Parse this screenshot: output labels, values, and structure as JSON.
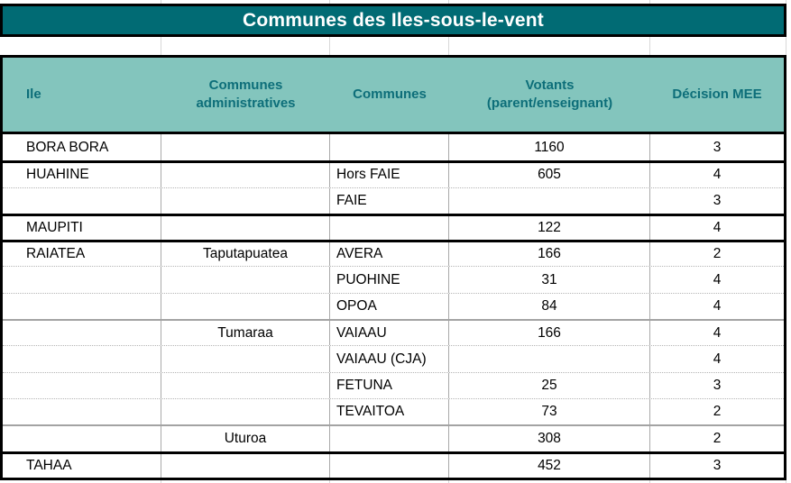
{
  "title": "Communes des Iles-sous-le-vent",
  "columns": [
    {
      "label": "Ile"
    },
    {
      "label": "Communes\nadministratives"
    },
    {
      "label": "Communes"
    },
    {
      "label": "Votants\n(parent/enseignant)"
    },
    {
      "label": "Décision MEE"
    }
  ],
  "rows": [
    {
      "ile": "BORA BORA",
      "admin": "",
      "commune": "",
      "votants": "1160",
      "decision": "3",
      "divider": "none"
    },
    {
      "ile": "HUAHINE",
      "admin": "",
      "commune": "Hors FAIE",
      "votants": "605",
      "decision": "4",
      "divider": "thick"
    },
    {
      "ile": "",
      "admin": "",
      "commune": "FAIE",
      "votants": "",
      "decision": "3",
      "divider": "dotted"
    },
    {
      "ile": "MAUPITI",
      "admin": "",
      "commune": "",
      "votants": "122",
      "decision": "4",
      "divider": "thick"
    },
    {
      "ile": "RAIATEA",
      "admin": "Taputapuatea",
      "commune": "AVERA",
      "votants": "166",
      "decision": "2",
      "divider": "thick"
    },
    {
      "ile": "",
      "admin": "",
      "commune": "PUOHINE",
      "votants": "31",
      "decision": "4",
      "divider": "dotted"
    },
    {
      "ile": "",
      "admin": "",
      "commune": "OPOA",
      "votants": "84",
      "decision": "4",
      "divider": "dotted"
    },
    {
      "ile": "",
      "admin": "Tumaraa",
      "commune": "VAIAAU",
      "votants": "166",
      "decision": "4",
      "divider": "gray"
    },
    {
      "ile": "",
      "admin": "",
      "commune": "VAIAAU (CJA)",
      "votants": "",
      "decision": "4",
      "divider": "dotted"
    },
    {
      "ile": "",
      "admin": "",
      "commune": "FETUNA",
      "votants": "25",
      "decision": "3",
      "divider": "dotted"
    },
    {
      "ile": "",
      "admin": "",
      "commune": "TEVAITOA",
      "votants": "73",
      "decision": "2",
      "divider": "dotted"
    },
    {
      "ile": "",
      "admin": "Uturoa",
      "commune": "",
      "votants": "308",
      "decision": "2",
      "divider": "gray"
    },
    {
      "ile": "TAHAA",
      "admin": "",
      "commune": "",
      "votants": "452",
      "decision": "3",
      "divider": "thick"
    }
  ],
  "colors": {
    "title_bg": "#016b74",
    "title_text": "#ffffff",
    "header_bg": "#83c5bd",
    "header_text": "#0d6e79",
    "grid_line": "#d8d8d8",
    "cell_border": "#a9a9a9",
    "group_border": "#000000",
    "gray_border": "#a3a3a3",
    "dot_border": "#b5b5b5"
  }
}
